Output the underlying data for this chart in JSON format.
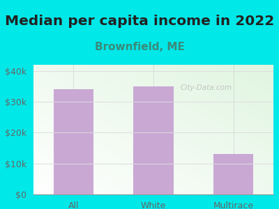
{
  "title": "Median per capita income in 2022",
  "subtitle": "Brownfield, ME",
  "categories": [
    "All",
    "White",
    "Multirace"
  ],
  "values": [
    34000,
    35000,
    13000
  ],
  "bar_color": "#c9a8d4",
  "background_color": "#00e8e8",
  "title_color": "#222222",
  "subtitle_color": "#3a8a7a",
  "tick_color": "#666666",
  "grid_color": "#dddddd",
  "ylim": [
    0,
    42000
  ],
  "yticks": [
    0,
    10000,
    20000,
    30000,
    40000
  ],
  "ytick_labels": [
    "$0",
    "$10k",
    "$20k",
    "$30k",
    "$40k"
  ],
  "watermark": "City-Data.com",
  "title_fontsize": 14.5,
  "subtitle_fontsize": 11,
  "tick_fontsize": 9
}
